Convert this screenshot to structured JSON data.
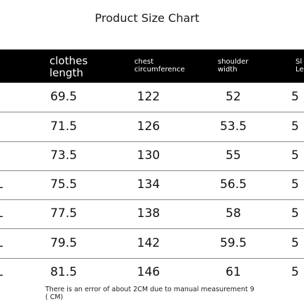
{
  "title": "Product Size Chart",
  "headers": [
    {
      "label": "clothes\nlength",
      "size": "big"
    },
    {
      "label": "chest\ncircumference",
      "size": "small"
    },
    {
      "label": "shoulder\nwidth",
      "size": "small"
    },
    {
      "label": "Sl\nLe",
      "size": "small"
    }
  ],
  "rows": [
    {
      "first": "",
      "values": [
        "69.5",
        "122",
        "52",
        "5"
      ]
    },
    {
      "first": "",
      "values": [
        "71.5",
        "126",
        "53.5",
        "5"
      ]
    },
    {
      "first": "",
      "values": [
        "73.5",
        "130",
        "55",
        "5"
      ]
    },
    {
      "first": "L",
      "values": [
        "75.5",
        "134",
        "56.5",
        "5"
      ]
    },
    {
      "first": "L",
      "values": [
        "77.5",
        "138",
        "58",
        "5"
      ]
    },
    {
      "first": "L",
      "values": [
        "79.5",
        "142",
        "59.5",
        "5"
      ]
    },
    {
      "first": "L",
      "values": [
        "81.5",
        "146",
        "61",
        "5"
      ]
    }
  ],
  "note": "There is an error of about 2CM due to manual measurement 9 ( CM)"
}
